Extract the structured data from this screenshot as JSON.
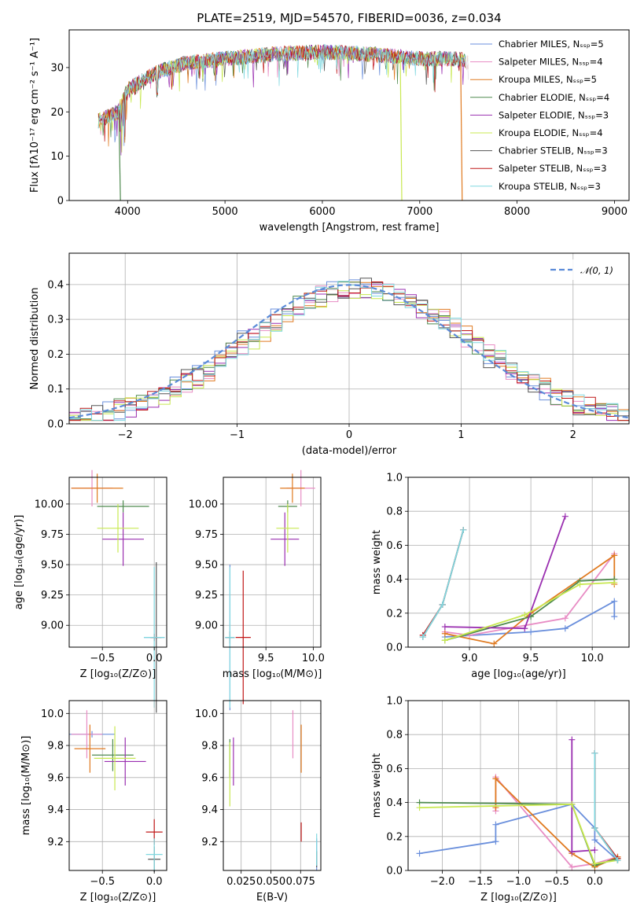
{
  "colors": {
    "c_miles": "#6a8fdc",
    "s_miles": "#e88cc4",
    "k_miles": "#e07a20",
    "c_elodie": "#4f8a4f",
    "s_elodie": "#9a2fb0",
    "k_elodie": "#c8e850",
    "c_stelib": "#555555",
    "s_stelib": "#c01818",
    "k_stelib": "#80d8e0"
  },
  "chart_data": [
    {
      "type": "line",
      "title": "PLATE=2519, MJD=54570, FIBERID=0036, z=0.034",
      "xlabel": "wavelength [Angstrom, rest frame]",
      "ylabel": "Flux [fλ10⁻¹⁷ erg cm⁻² s⁻¹ A⁻¹]",
      "xlim": [
        3400,
        9150
      ],
      "ylim": [
        0,
        38.5
      ],
      "xticks": [
        4000,
        5000,
        6000,
        7000,
        8000,
        9000
      ],
      "yticks": [
        0,
        10,
        20,
        30
      ],
      "grid": false,
      "legend_position": "right",
      "legend": [
        "Chabrier MILES, Nₛₛₚ=5",
        "Salpeter MILES, Nₛₛₚ=4",
        "Kroupa MILES, Nₛₛₚ=5",
        "Chabrier ELODIE, Nₛₛₚ=4",
        "Salpeter ELODIE, Nₛₛₚ=3",
        "Kroupa ELODIE, Nₛₛₚ=4",
        "Chabrier STELIB, Nₛₛₚ=3",
        "Salpeter STELIB, Nₛₛₚ=3",
        "Kroupa STELIB, Nₛₛₚ=3"
      ],
      "continuum": {
        "x": [
          3700,
          3900,
          4000,
          4300,
          4600,
          5000,
          5500,
          6000,
          6500,
          7000,
          7400,
          7500
        ],
        "y": [
          18,
          20,
          25,
          29,
          31,
          32,
          33,
          33.5,
          33,
          32,
          32,
          31
        ]
      },
      "drop_lines": [
        {
          "series": "Salpeter STELIB",
          "x": 7420
        },
        {
          "series": "Kroupa ELODIE",
          "x": 6800
        },
        {
          "series": "Chabrier STELIB",
          "x": 3910
        }
      ]
    },
    {
      "type": "line",
      "xlabel": "(data-model)/error",
      "ylabel": "Normed distribution",
      "xlim": [
        -2.5,
        2.5
      ],
      "ylim": [
        0,
        0.49
      ],
      "xticks": [
        -2,
        -1,
        0,
        1,
        2
      ],
      "yticks": [
        0.0,
        0.1,
        0.2,
        0.3,
        0.4
      ],
      "grid": true,
      "legend_position": "top-right",
      "legend": [
        "𝒩(0, 1)"
      ],
      "histogram_bins": 50,
      "histogram_range": [
        -2.5,
        2.5
      ]
    },
    {
      "type": "scatter",
      "xlabel": "Z [log₁₀(Z/Z⊙)]",
      "ylabel": "age  [log₁₀(age/yr)]",
      "xlim": [
        -0.82,
        0.12
      ],
      "ylim": [
        8.82,
        10.22
      ],
      "xticks": [
        -0.5,
        0.0
      ],
      "yticks": [
        9.0,
        9.25,
        9.5,
        9.75,
        10.0
      ],
      "points": [
        {
          "s": "c_miles",
          "x": 0.0,
          "y": 8.9,
          "xe": 0.1,
          "ye": 0.03
        },
        {
          "s": "s_miles",
          "x": -0.6,
          "y": 10.13,
          "xe": 0.2,
          "ye": 0.15
        },
        {
          "s": "k_miles",
          "x": -0.55,
          "y": 10.13,
          "xe": 0.25,
          "ye": 0.12
        },
        {
          "s": "c_elodie",
          "x": -0.3,
          "y": 9.98,
          "xe": 0.25,
          "ye": 0.05
        },
        {
          "s": "s_elodie",
          "x": -0.3,
          "y": 9.71,
          "xe": 0.2,
          "ye": 0.22
        },
        {
          "s": "k_elodie",
          "x": -0.35,
          "y": 9.8,
          "xe": 0.2,
          "ye": 0.2
        },
        {
          "s": "c_stelib",
          "x": 0.02,
          "y": 8.9,
          "xe": 0.05,
          "ye": 0.62
        },
        {
          "s": "s_stelib",
          "x": 0.0,
          "y": 8.9,
          "xe": 0.04,
          "ye": 0.03
        },
        {
          "s": "k_stelib",
          "x": 0.0,
          "y": 8.9,
          "xe": 0.1,
          "ye": 0.58
        }
      ]
    },
    {
      "type": "scatter",
      "xlabel": "mass [log₁₀(M/M⊙)]",
      "ylabel": "",
      "xlim": [
        9.05,
        10.08
      ],
      "ylim": [
        8.82,
        10.22
      ],
      "xticks": [
        9.5,
        10.0
      ],
      "yticks": [
        9.0,
        9.25,
        9.5,
        9.75,
        10.0
      ],
      "points": [
        {
          "s": "c_miles",
          "x": 9.12,
          "y": 8.9,
          "xe": 0.05,
          "ye": 0.6
        },
        {
          "s": "s_miles",
          "x": 9.87,
          "y": 10.13,
          "xe": 0.15,
          "ye": 0.15
        },
        {
          "s": "k_miles",
          "x": 9.78,
          "y": 10.13,
          "xe": 0.13,
          "ye": 0.12
        },
        {
          "s": "c_elodie",
          "x": 9.73,
          "y": 9.98,
          "xe": 0.1,
          "ye": 0.05
        },
        {
          "s": "s_elodie",
          "x": 9.7,
          "y": 9.71,
          "xe": 0.15,
          "ye": 0.22
        },
        {
          "s": "k_elodie",
          "x": 9.73,
          "y": 9.8,
          "xe": 0.12,
          "ye": 0.2
        },
        {
          "s": "c_stelib",
          "x": 9.12,
          "y": 8.9,
          "xe": 0.05,
          "ye": 0.05
        },
        {
          "s": "s_stelib",
          "x": 9.26,
          "y": 8.9,
          "xe": 0.08,
          "ye": 0.55
        },
        {
          "s": "k_stelib",
          "x": 9.12,
          "y": 8.9,
          "xe": 0.05,
          "ye": 0.58
        }
      ]
    },
    {
      "type": "line",
      "xlabel": "age  [log₁₀(age/yr)]",
      "ylabel": "mass weight",
      "xlim": [
        8.5,
        10.3
      ],
      "ylim": [
        0,
        1.0
      ],
      "xticks": [
        9.0,
        9.5,
        10.0
      ],
      "yticks": [
        0.0,
        0.2,
        0.4,
        0.6,
        0.8,
        1.0
      ],
      "grid": true,
      "series": [
        {
          "s": "c_miles",
          "x": [
            8.8,
            9.5,
            9.78,
            10.18,
            10.18
          ],
          "y": [
            0.06,
            0.09,
            0.11,
            0.27,
            0.18
          ]
        },
        {
          "s": "s_miles",
          "x": [
            8.8,
            9.0,
            9.78,
            10.18
          ],
          "y": [
            0.09,
            0.07,
            0.17,
            0.55
          ]
        },
        {
          "s": "k_miles",
          "x": [
            8.8,
            9.2,
            9.5,
            10.18,
            10.18
          ],
          "y": [
            0.08,
            0.02,
            0.2,
            0.54,
            0.37
          ]
        },
        {
          "s": "c_elodie",
          "x": [
            8.8,
            9.5,
            9.9,
            10.18
          ],
          "y": [
            0.04,
            0.18,
            0.39,
            0.4
          ]
        },
        {
          "s": "s_elodie",
          "x": [
            8.8,
            9.45,
            9.78
          ],
          "y": [
            0.12,
            0.11,
            0.77
          ]
        },
        {
          "s": "k_elodie",
          "x": [
            8.8,
            9.45,
            9.9,
            10.18
          ],
          "y": [
            0.04,
            0.19,
            0.37,
            0.38
          ]
        },
        {
          "s": "c_stelib",
          "x": [
            8.62,
            8.78,
            8.95
          ],
          "y": [
            0.06,
            0.25,
            0.69
          ]
        },
        {
          "s": "s_stelib",
          "x": [
            8.62,
            8.78,
            8.95
          ],
          "y": [
            0.07,
            0.25,
            0.69
          ]
        },
        {
          "s": "k_stelib",
          "x": [
            8.62,
            8.78,
            8.95
          ],
          "y": [
            0.06,
            0.25,
            0.69
          ]
        }
      ]
    },
    {
      "type": "scatter",
      "xlabel": "Z [log₁₀(Z/Z⊙)]",
      "ylabel": "mass [log₁₀(M/M⊙)]",
      "xlim": [
        -0.82,
        0.12
      ],
      "ylim": [
        9.02,
        10.08
      ],
      "xticks": [
        -0.5,
        0.0
      ],
      "yticks": [
        9.2,
        9.4,
        9.6,
        9.8,
        10.0
      ],
      "points": [
        {
          "s": "c_miles",
          "x": -0.6,
          "y": 9.87,
          "xe": 0.22,
          "ye": 0.02
        },
        {
          "s": "s_miles",
          "x": -0.65,
          "y": 9.87,
          "xe": 0.15,
          "ye": 0.15
        },
        {
          "s": "k_miles",
          "x": -0.62,
          "y": 9.78,
          "xe": 0.15,
          "ye": 0.15
        },
        {
          "s": "c_elodie",
          "x": -0.4,
          "y": 9.74,
          "xe": 0.2,
          "ye": 0.1
        },
        {
          "s": "s_elodie",
          "x": -0.28,
          "y": 9.7,
          "xe": 0.2,
          "ye": 0.15
        },
        {
          "s": "k_elodie",
          "x": -0.38,
          "y": 9.72,
          "xe": 0.2,
          "ye": 0.2
        },
        {
          "s": "c_stelib",
          "x": 0.0,
          "y": 9.09,
          "xe": 0.06,
          "ye": 0.08
        },
        {
          "s": "s_stelib",
          "x": 0.0,
          "y": 9.26,
          "xe": 0.08,
          "ye": 0.08
        },
        {
          "s": "k_stelib",
          "x": 0.0,
          "y": 9.12,
          "xe": 0.08,
          "ye": 0.1
        }
      ]
    },
    {
      "type": "scatter",
      "xlabel": "E(B-V)",
      "ylabel": "",
      "xlim": [
        0.01,
        0.092
      ],
      "ylim": [
        9.02,
        10.08
      ],
      "xticks": [
        0.025,
        0.05,
        0.075
      ],
      "xticklabels": [
        "0.025",
        "0.050",
        "0.075"
      ],
      "yticks": [
        9.2,
        9.4,
        9.6,
        9.8,
        10.0
      ],
      "points": [
        {
          "s": "c_miles",
          "x": 0.0885,
          "y": 9.12,
          "xe": 0,
          "ye": 0.1
        },
        {
          "s": "s_miles",
          "x": 0.0685,
          "y": 9.87,
          "xe": 0,
          "ye": 0.15
        },
        {
          "s": "k_miles",
          "x": 0.0755,
          "y": 9.78,
          "xe": 0,
          "ye": 0.15
        },
        {
          "s": "c_elodie",
          "x": 0.0155,
          "y": 9.72,
          "xe": 0,
          "ye": 0.12
        },
        {
          "s": "s_elodie",
          "x": 0.0185,
          "y": 9.7,
          "xe": 0,
          "ye": 0.15
        },
        {
          "s": "k_elodie",
          "x": 0.0155,
          "y": 9.62,
          "xe": 0,
          "ye": 0.2
        },
        {
          "s": "c_stelib",
          "x": 0.0885,
          "y": 9.09,
          "xe": 0,
          "ye": 0.05
        },
        {
          "s": "s_stelib",
          "x": 0.0755,
          "y": 9.26,
          "xe": 0,
          "ye": 0.06
        },
        {
          "s": "k_stelib",
          "x": 0.0885,
          "y": 9.15,
          "xe": 0,
          "ye": 0.1
        }
      ]
    },
    {
      "type": "line",
      "xlabel": "Z [log₁₀(Z/Z⊙)]",
      "ylabel": "mass weight",
      "xlim": [
        -2.45,
        0.45
      ],
      "ylim": [
        0,
        1.0
      ],
      "xticks": [
        -2.0,
        -1.5,
        -1.0,
        -0.5,
        0.0
      ],
      "yticks": [
        0.0,
        0.2,
        0.4,
        0.6,
        0.8,
        1.0
      ],
      "grid": true,
      "series": [
        {
          "s": "c_miles",
          "x": [
            -2.3,
            -1.3,
            -1.3,
            -0.3,
            0.0,
            0.0,
            0.3
          ],
          "y": [
            0.1,
            0.17,
            0.27,
            0.39,
            0.25,
            0.18,
            0.06
          ]
        },
        {
          "s": "s_miles",
          "x": [
            -1.3,
            -1.3,
            -0.3,
            0.0,
            0.3
          ],
          "y": [
            0.35,
            0.55,
            0.02,
            0.04,
            0.08
          ]
        },
        {
          "s": "k_miles",
          "x": [
            -1.3,
            -1.3,
            -0.3,
            0.0,
            0.3
          ],
          "y": [
            0.37,
            0.54,
            0.1,
            0.02,
            0.08
          ]
        },
        {
          "s": "c_elodie",
          "x": [
            -2.3,
            -0.3,
            0.0,
            0.3
          ],
          "y": [
            0.4,
            0.39,
            0.03,
            0.07
          ]
        },
        {
          "s": "s_elodie",
          "x": [
            -0.3,
            -0.3,
            0.0
          ],
          "y": [
            0.77,
            0.11,
            0.12
          ]
        },
        {
          "s": "k_elodie",
          "x": [
            -2.3,
            -0.3,
            0.0,
            0.3
          ],
          "y": [
            0.37,
            0.39,
            0.04,
            0.06
          ]
        },
        {
          "s": "c_stelib",
          "x": [
            0.0,
            0.0,
            0.3
          ],
          "y": [
            0.69,
            0.25,
            0.06
          ]
        },
        {
          "s": "s_stelib",
          "x": [
            0.0,
            0.0,
            0.3
          ],
          "y": [
            0.69,
            0.25,
            0.07
          ]
        },
        {
          "s": "k_stelib",
          "x": [
            0.0,
            0.0,
            0.3
          ],
          "y": [
            0.69,
            0.25,
            0.06
          ]
        }
      ]
    }
  ]
}
